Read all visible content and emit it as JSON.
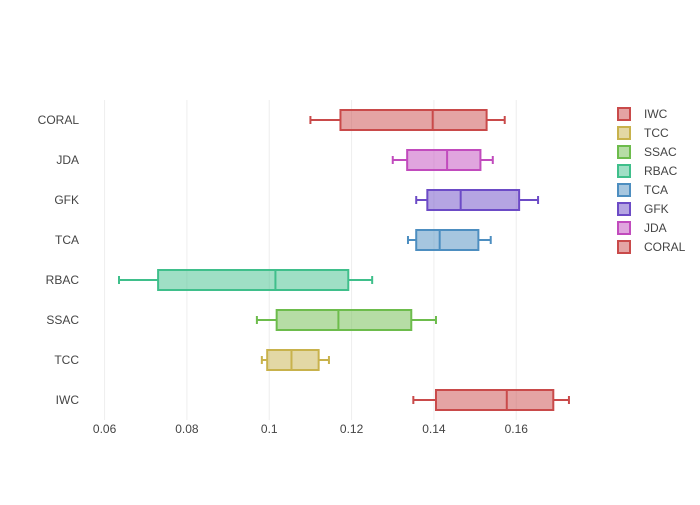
{
  "chart_data": {
    "type": "box",
    "orientation": "horizontal",
    "title": "",
    "xlabel": "",
    "ylabel": "",
    "xlim": [
      0.055,
      0.175
    ],
    "x_ticks": [
      0.06,
      0.08,
      0.1,
      0.12,
      0.14,
      0.16
    ],
    "x_tick_labels": [
      "0.06",
      "0.08",
      "0.1",
      "0.12",
      "0.14",
      "0.16"
    ],
    "grid": true,
    "legend_position": "top-right",
    "categories": [
      "IWC",
      "TCC",
      "SSAC",
      "RBAC",
      "TCA",
      "GFK",
      "JDA",
      "CORAL"
    ],
    "series": [
      {
        "name": "IWC",
        "color": "#c94a4a",
        "min": 0.135,
        "q1": 0.1405,
        "median": 0.1577,
        "q3": 0.169,
        "max": 0.1728
      },
      {
        "name": "TCC",
        "color": "#c8b24c",
        "min": 0.0982,
        "q1": 0.0995,
        "median": 0.1054,
        "q3": 0.112,
        "max": 0.1145
      },
      {
        "name": "SSAC",
        "color": "#6dbc4c",
        "min": 0.097,
        "q1": 0.1018,
        "median": 0.1168,
        "q3": 0.1345,
        "max": 0.1405
      },
      {
        "name": "RBAC",
        "color": "#3fbf8b",
        "min": 0.0635,
        "q1": 0.073,
        "median": 0.1015,
        "q3": 0.1192,
        "max": 0.125
      },
      {
        "name": "TCA",
        "color": "#4d8ec0",
        "min": 0.1337,
        "q1": 0.1357,
        "median": 0.1414,
        "q3": 0.1508,
        "max": 0.1538
      },
      {
        "name": "GFK",
        "color": "#6c4bc6",
        "min": 0.1357,
        "q1": 0.1384,
        "median": 0.1465,
        "q3": 0.1607,
        "max": 0.1653
      },
      {
        "name": "JDA",
        "color": "#c14bbd",
        "min": 0.13,
        "q1": 0.1335,
        "median": 0.1432,
        "q3": 0.1513,
        "max": 0.1543
      },
      {
        "name": "CORAL",
        "color": "#c94a4a",
        "min": 0.11,
        "q1": 0.1173,
        "median": 0.1397,
        "q3": 0.1528,
        "max": 0.1572
      }
    ]
  }
}
